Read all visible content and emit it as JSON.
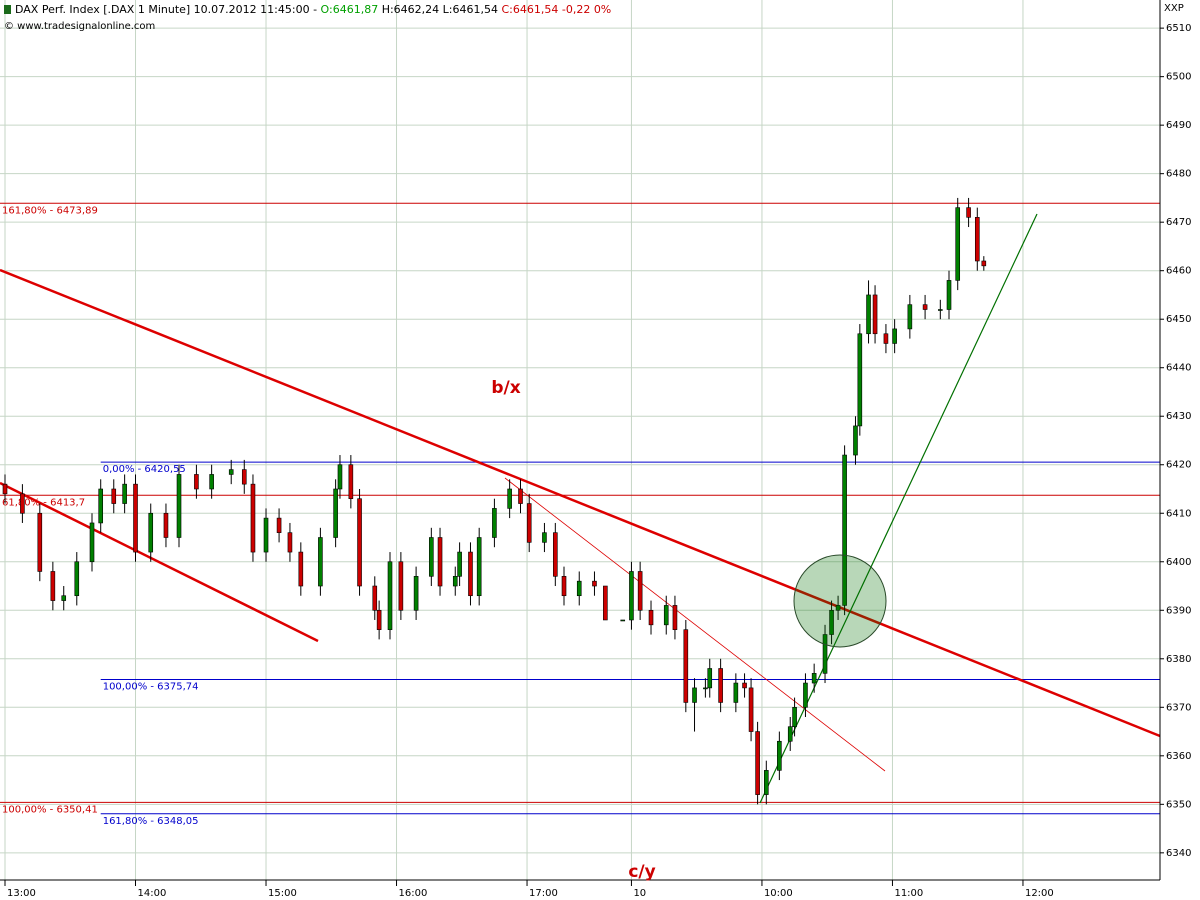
{
  "chart_data": {
    "type": "candlestick",
    "header": [
      {
        "text": "DAX Perf. Index [.DAX 1 Minute] 10.07.2012 11:45:00 - ",
        "color": "#000000"
      },
      {
        "text": "O:6461,87",
        "color": "#00a000"
      },
      {
        "text": " H:6462,24 L:6461,54 ",
        "color": "#000000"
      },
      {
        "text": "C:6461,54 -0,22 0%",
        "color": "#cc0000"
      }
    ],
    "copyright": "© www.tradesignalonline.com",
    "symbol": "XXP",
    "annotations": [
      {
        "text": "b/x",
        "color": "#cc0000"
      },
      {
        "text": "c/y",
        "color": "#cc0000"
      }
    ],
    "up_color": "#008000",
    "down_color": "#cc0000",
    "grid": true,
    "xlim": [
      -2.3,
      531
    ],
    "ylim": [
      6334.4,
      6515.8
    ],
    "xticks": [
      {
        "value": 0,
        "label": "13:00"
      },
      {
        "value": 60,
        "label": "14:00"
      },
      {
        "value": 120,
        "label": "15:00"
      },
      {
        "value": 180,
        "label": "16:00"
      },
      {
        "value": 240,
        "label": "17:00"
      },
      {
        "value": 288,
        "label": "10"
      },
      {
        "value": 348,
        "label": "10:00"
      },
      {
        "value": 408,
        "label": "11:00"
      },
      {
        "value": 468,
        "label": "12:00"
      }
    ],
    "yticks": [
      6340,
      6350,
      6360,
      6370,
      6380,
      6390,
      6400,
      6410,
      6420,
      6430,
      6440,
      6450,
      6460,
      6470,
      6480,
      6490,
      6500,
      6510
    ],
    "levels": [
      {
        "value": 6473.89,
        "label": "161,80% - 6473,89",
        "color": "#cc0000"
      },
      {
        "value": 6420.55,
        "label": "0,00% - 6420,55",
        "color": "#0000cc",
        "from": 44
      },
      {
        "value": 6413.7,
        "label": "61,80% - 6413,7",
        "color": "#cc0000"
      },
      {
        "value": 6375.74,
        "label": "100,00% - 6375,74",
        "color": "#0000cc",
        "from": 44
      },
      {
        "value": 6350.41,
        "label": "100,00% - 6350,41",
        "color": "#cc0000"
      },
      {
        "value": 6348.05,
        "label": "161,80% - 6348,05",
        "color": "#0000cc",
        "from": 44
      }
    ],
    "candles": {
      "x": [
        0,
        8,
        16,
        22,
        27,
        33,
        40,
        44,
        50,
        55,
        60,
        67,
        74,
        80,
        88,
        95,
        104,
        110,
        114,
        120,
        126,
        131,
        136,
        145,
        152,
        154,
        159,
        163,
        170,
        172,
        177,
        182,
        189,
        196,
        200,
        207,
        209,
        214,
        218,
        225,
        232,
        237,
        241,
        248,
        253,
        257,
        264,
        271,
        276,
        284,
        288,
        292,
        297,
        304,
        308,
        313,
        317,
        322,
        324,
        329,
        336,
        340,
        343,
        346,
        350,
        356,
        361,
        363,
        368,
        372,
        377,
        380,
        383,
        386,
        391,
        393,
        397,
        400,
        405,
        409,
        416,
        423,
        430,
        434,
        438,
        443,
        447,
        450
      ],
      "open": [
        6416,
        6414,
        6410,
        6398,
        6392,
        6393,
        6400,
        6408,
        6415,
        6412,
        6416,
        6402,
        6410,
        6405,
        6418,
        6415,
        6418,
        6419,
        6416,
        6402,
        6409,
        6406,
        6402,
        6395,
        6405,
        6415,
        6420,
        6413,
        6395,
        6390,
        6386,
        6400,
        6390,
        6397,
        6405,
        6395,
        6397,
        6402,
        6393,
        6405,
        6411,
        6415,
        6412,
        6404,
        6406,
        6397,
        6393,
        6396,
        6395,
        6388,
        6388,
        6398,
        6390,
        6387,
        6391,
        6386,
        6371,
        6374,
        6374,
        6378,
        6371,
        6375,
        6374,
        6365,
        6352,
        6357,
        6363,
        6366,
        6370,
        6375,
        6377,
        6385,
        6390,
        6391,
        6422,
        6428,
        6447,
        6455,
        6447,
        6445,
        6448,
        6453,
        6452,
        6452,
        6458,
        6473,
        6471,
        6462
      ],
      "high": [
        6418,
        6416,
        6412,
        6400,
        6395,
        6402,
        6410,
        6417,
        6417,
        6418,
        6418,
        6412,
        6412,
        6420,
        6420,
        6420,
        6421,
        6421,
        6418,
        6411,
        6411,
        6408,
        6404,
        6407,
        6417,
        6422,
        6422,
        6415,
        6397,
        6392,
        6402,
        6402,
        6399,
        6407,
        6407,
        6399,
        6404,
        6404,
        6407,
        6413,
        6417,
        6417,
        6414,
        6408,
        6408,
        6399,
        6398,
        6398,
        6395,
        6388,
        6400,
        6400,
        6392,
        6393,
        6393,
        6388,
        6376,
        6376,
        6380,
        6380,
        6377,
        6377,
        6376,
        6367,
        6359,
        6365,
        6368,
        6372,
        6377,
        6379,
        6387,
        6392,
        6393,
        6424,
        6430,
        6449,
        6458,
        6457,
        6449,
        6450,
        6455,
        6455,
        6454,
        6460,
        6475,
        6475,
        6473,
        6463
      ],
      "low": [
        6412,
        6408,
        6396,
        6390,
        6390,
        6391,
        6398,
        6406,
        6410,
        6410,
        6400,
        6400,
        6403,
        6403,
        6413,
        6413,
        6416,
        6414,
        6400,
        6400,
        6404,
        6400,
        6393,
        6393,
        6403,
        6413,
        6411,
        6393,
        6388,
        6384,
        6384,
        6388,
        6388,
        6395,
        6393,
        6393,
        6395,
        6391,
        6391,
        6403,
        6409,
        6410,
        6402,
        6402,
        6395,
        6391,
        6391,
        6393,
        6388,
        6388,
        6386,
        6388,
        6385,
        6385,
        6384,
        6369,
        6365,
        6372,
        6372,
        6369,
        6369,
        6372,
        6363,
        6350,
        6350,
        6355,
        6361,
        6364,
        6368,
        6373,
        6375,
        6383,
        6388,
        6389,
        6420,
        6426,
        6445,
        6445,
        6443,
        6443,
        6446,
        6450,
        6450,
        6450,
        6456,
        6469,
        6460,
        6460
      ],
      "close": [
        6414,
        6410,
        6398,
        6392,
        6393,
        6400,
        6408,
        6415,
        6412,
        6416,
        6402,
        6410,
        6405,
        6418,
        6415,
        6418,
        6419,
        6416,
        6402,
        6409,
        6406,
        6402,
        6395,
        6405,
        6415,
        6420,
        6413,
        6395,
        6390,
        6386,
        6400,
        6390,
        6397,
        6405,
        6395,
        6397,
        6402,
        6393,
        6405,
        6411,
        6415,
        6412,
        6404,
        6406,
        6397,
        6393,
        6396,
        6395,
        6388,
        6388,
        6398,
        6390,
        6387,
        6391,
        6386,
        6371,
        6374,
        6374,
        6378,
        6371,
        6375,
        6374,
        6365,
        6352,
        6357,
        6363,
        6366,
        6370,
        6375,
        6377,
        6385,
        6390,
        6391,
        6422,
        6428,
        6447,
        6455,
        6447,
        6445,
        6448,
        6453,
        6452,
        6452,
        6458,
        6473,
        6471,
        6462,
        6461
      ]
    }
  }
}
